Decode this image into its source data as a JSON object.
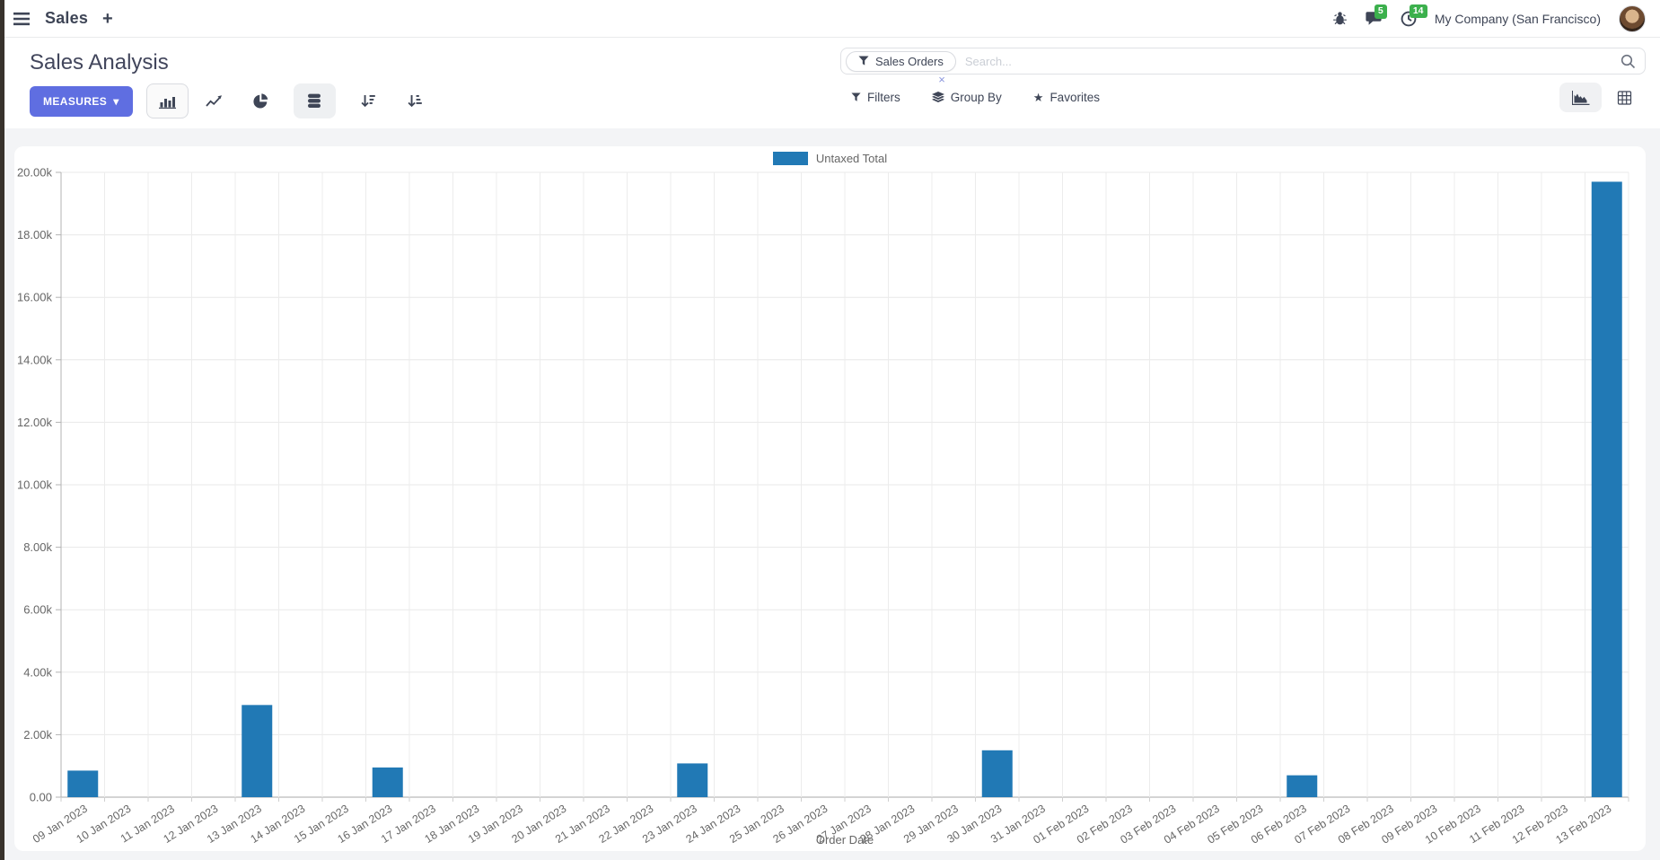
{
  "navbar": {
    "app_name": "Sales",
    "new_tab": "+",
    "messages_badge": "5",
    "activities_badge": "14",
    "company": "My Company (San Francisco)"
  },
  "control_panel": {
    "title": "Sales Analysis",
    "measures_label": "MEASURES",
    "measures_caret": "▾",
    "search": {
      "facet": "Sales Orders",
      "facet_remove": "×",
      "placeholder": "Search..."
    },
    "menus": {
      "filters": "Filters",
      "group_by": "Group By",
      "favorites": "Favorites",
      "favorites_star": "★"
    },
    "icon_names": [
      "bar-chart-icon",
      "line-chart-icon",
      "pie-chart-icon",
      "stacked-icon",
      "sort-descending-icon",
      "sort-ascending-icon",
      "area-view-icon",
      "pivot-view-icon"
    ]
  },
  "colors": {
    "bar_blue": "#2179b5",
    "primary_button": "#5f6ee1",
    "badge_green": "#3cb04d"
  },
  "chart_data": {
    "type": "bar",
    "title": "",
    "xlabel": "Order Date",
    "ylabel": "",
    "ylim": [
      0,
      20000
    ],
    "grid": true,
    "legend_position": "top",
    "ytick_labels": [
      "0.00",
      "2.00k",
      "4.00k",
      "6.00k",
      "8.00k",
      "10.00k",
      "12.00k",
      "14.00k",
      "16.00k",
      "18.00k",
      "20.00k"
    ],
    "categories": [
      "09 Jan 2023",
      "10 Jan 2023",
      "11 Jan 2023",
      "12 Jan 2023",
      "13 Jan 2023",
      "14 Jan 2023",
      "15 Jan 2023",
      "16 Jan 2023",
      "17 Jan 2023",
      "18 Jan 2023",
      "19 Jan 2023",
      "20 Jan 2023",
      "21 Jan 2023",
      "22 Jan 2023",
      "23 Jan 2023",
      "24 Jan 2023",
      "25 Jan 2023",
      "26 Jan 2023",
      "27 Jan 2023",
      "28 Jan 2023",
      "29 Jan 2023",
      "30 Jan 2023",
      "31 Jan 2023",
      "01 Feb 2023",
      "02 Feb 2023",
      "03 Feb 2023",
      "04 Feb 2023",
      "05 Feb 2023",
      "06 Feb 2023",
      "07 Feb 2023",
      "08 Feb 2023",
      "09 Feb 2023",
      "10 Feb 2023",
      "11 Feb 2023",
      "12 Feb 2023",
      "13 Feb 2023"
    ],
    "series": [
      {
        "name": "Untaxed Total",
        "color": "#2179b5",
        "values": [
          850,
          0,
          0,
          0,
          2950,
          0,
          0,
          950,
          0,
          0,
          0,
          0,
          0,
          0,
          1080,
          0,
          0,
          0,
          0,
          0,
          0,
          1500,
          0,
          0,
          0,
          0,
          0,
          0,
          700,
          0,
          0,
          0,
          0,
          0,
          0,
          19700
        ]
      }
    ]
  }
}
